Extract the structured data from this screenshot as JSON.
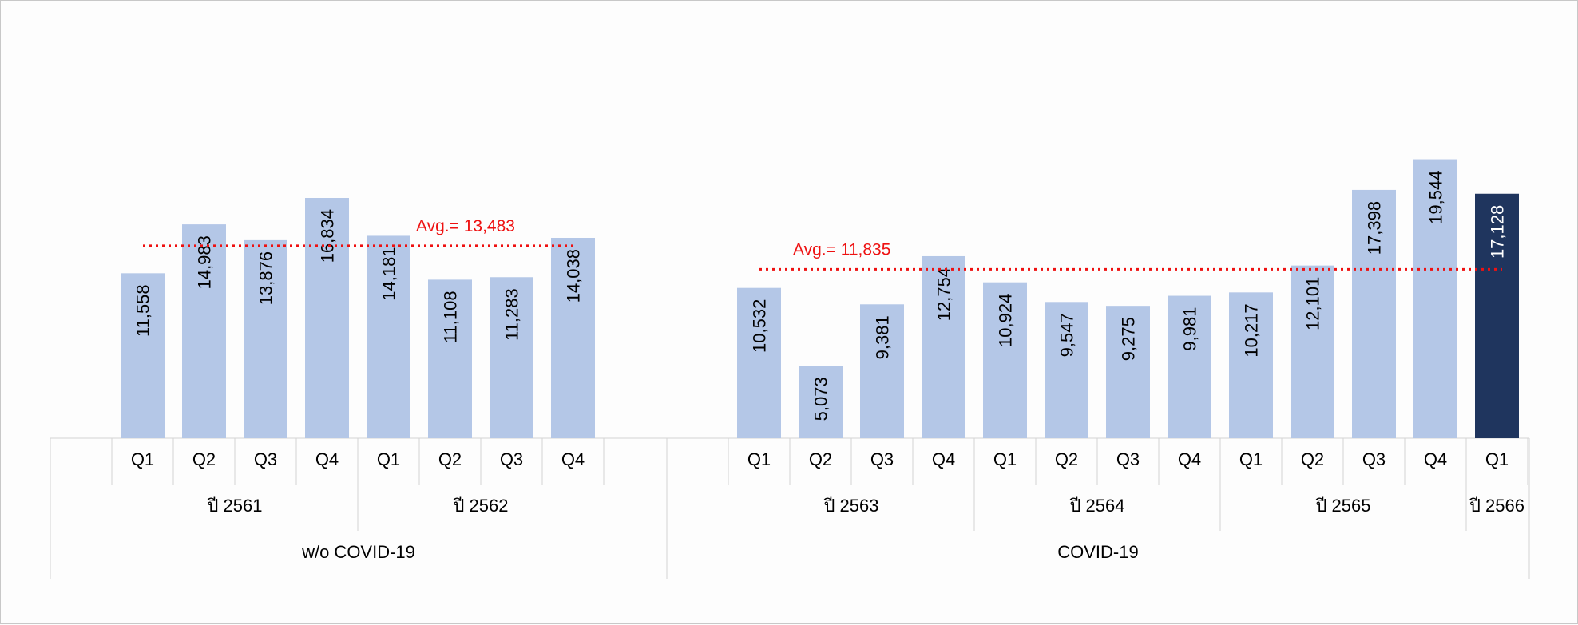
{
  "chart_data": {
    "type": "bar",
    "bar_color": "#b4c7e7",
    "highlight_color": "#1f355e",
    "avg_color": "#ee1111",
    "ylim": [
      0,
      21000
    ],
    "groups": [
      {
        "label": "w/o COVID-19",
        "years": [
          {
            "label": "ปี 2561",
            "quarters": [
              "Q1",
              "Q2",
              "Q3",
              "Q4"
            ],
            "values": [
              11558,
              14983,
              13876,
              16834
            ],
            "value_labels": [
              "11,558",
              "14,983",
              "13,876",
              "16,834"
            ]
          },
          {
            "label": "ปี 2562",
            "quarters": [
              "Q1",
              "Q2",
              "Q3",
              "Q4"
            ],
            "values": [
              14181,
              11108,
              11283,
              14038
            ],
            "value_labels": [
              "14,181",
              "11,108",
              "11,283",
              "14,038"
            ]
          }
        ],
        "average": {
          "value": 13483,
          "label": "Avg.= 13,483"
        }
      },
      {
        "label": "COVID-19",
        "years": [
          {
            "label": "ปี 2563",
            "quarters": [
              "Q1",
              "Q2",
              "Q3",
              "Q4"
            ],
            "values": [
              10532,
              5073,
              9381,
              12754
            ],
            "value_labels": [
              "10,532",
              "5,073",
              "9,381",
              "12,754"
            ]
          },
          {
            "label": "ปี 2564",
            "quarters": [
              "Q1",
              "Q2",
              "Q3",
              "Q4"
            ],
            "values": [
              10924,
              9547,
              9275,
              9981
            ],
            "value_labels": [
              "10,924",
              "9,547",
              "9,275",
              "9,981"
            ]
          },
          {
            "label": "ปี 2565",
            "quarters": [
              "Q1",
              "Q2",
              "Q3",
              "Q4"
            ],
            "values": [
              10217,
              12101,
              17398,
              19544
            ],
            "value_labels": [
              "10,217",
              "12,101",
              "17,398",
              "19,544"
            ]
          },
          {
            "label": "ปี 2566",
            "quarters": [
              "Q1"
            ],
            "values": [
              17128
            ],
            "value_labels": [
              "17,128"
            ],
            "highlight": true
          }
        ],
        "average": {
          "value": 11835,
          "label": "Avg.= 11,835"
        }
      }
    ]
  }
}
